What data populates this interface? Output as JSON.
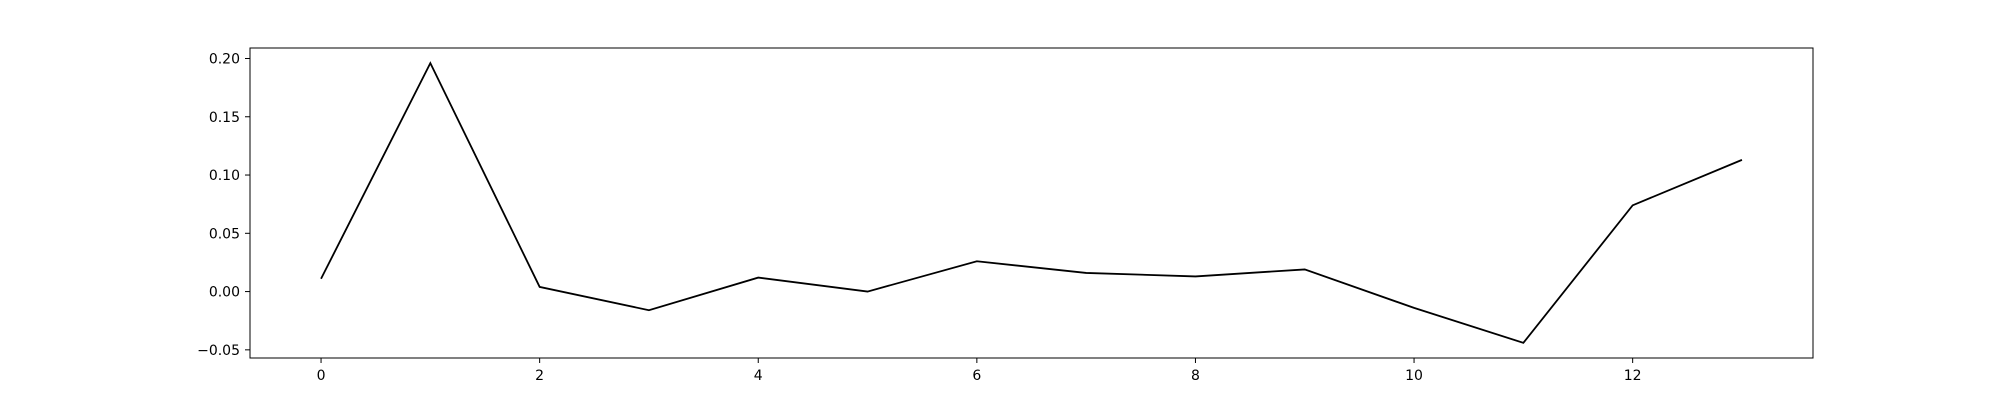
{
  "chart_data": {
    "type": "line",
    "x": [
      0,
      1,
      2,
      3,
      4,
      5,
      6,
      7,
      8,
      9,
      10,
      11,
      12,
      13
    ],
    "series": [
      {
        "values": [
          0.011,
          0.196,
          0.004,
          -0.016,
          0.012,
          0.0,
          0.026,
          0.016,
          0.013,
          0.019,
          -0.014,
          -0.044,
          0.074,
          0.113
        ],
        "color": "#000000"
      }
    ],
    "xlim": [
      -0.65,
      13.65
    ],
    "ylim": [
      -0.057,
      0.209
    ],
    "xticks": [
      0,
      2,
      4,
      6,
      8,
      10,
      12
    ],
    "xtick_labels": [
      "0",
      "2",
      "4",
      "6",
      "8",
      "10",
      "12"
    ],
    "yticks": [
      -0.05,
      0.0,
      0.05,
      0.1,
      0.15,
      0.2
    ],
    "ytick_labels": [
      "−0.05",
      "0.00",
      "0.05",
      "0.10",
      "0.15",
      "0.20"
    ],
    "grid": false
  }
}
